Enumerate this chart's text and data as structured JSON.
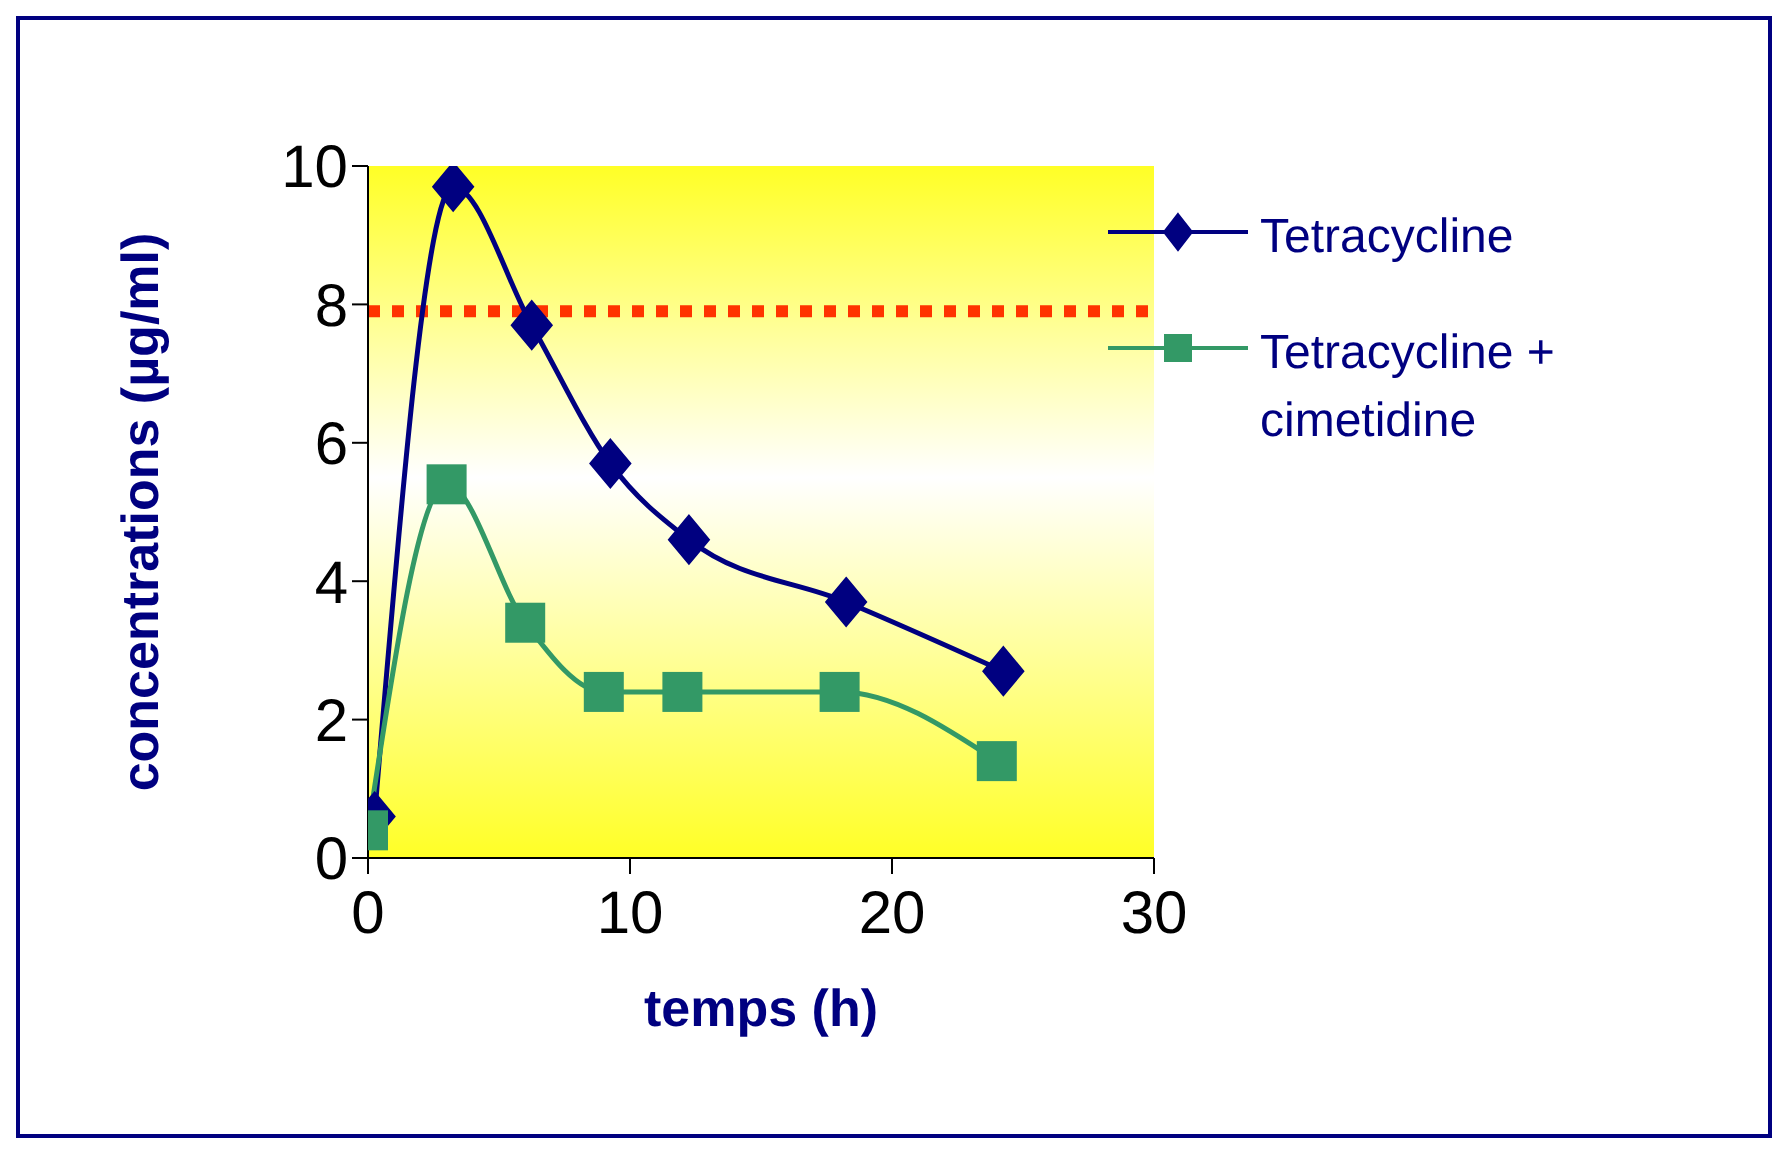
{
  "chart_data": {
    "type": "line",
    "xlabel": "temps (h)",
    "ylabel": "concentrations (µg/ml)",
    "xlim": [
      0,
      30
    ],
    "xticks": [
      0,
      10,
      20,
      30
    ],
    "ylim": [
      0,
      10
    ],
    "yticks": [
      0,
      2,
      4,
      6,
      8,
      10
    ],
    "grid": false,
    "legend": "top right",
    "line_style": "solid",
    "ref_lines": [
      {
        "axis": "y",
        "value": 7.9,
        "color": "#ff3300",
        "line_style": "dotted"
      }
    ],
    "series": [
      {
        "name": "Tetracycline",
        "color": "#000080",
        "marker": "diamond",
        "x": [
          0.25,
          3.25,
          6.25,
          9.25,
          12.25,
          18.25,
          24.25
        ],
        "values": [
          0.6,
          9.7,
          7.7,
          5.7,
          4.6,
          3.7,
          2.7
        ]
      },
      {
        "name": "Tetracycline + cimetidine",
        "color": "#339966",
        "marker": "square",
        "x": [
          0,
          3,
          6,
          9,
          12,
          18,
          24
        ],
        "values": [
          0.4,
          5.4,
          3.4,
          2.4,
          2.4,
          2.4,
          1.4
        ]
      }
    ]
  }
}
